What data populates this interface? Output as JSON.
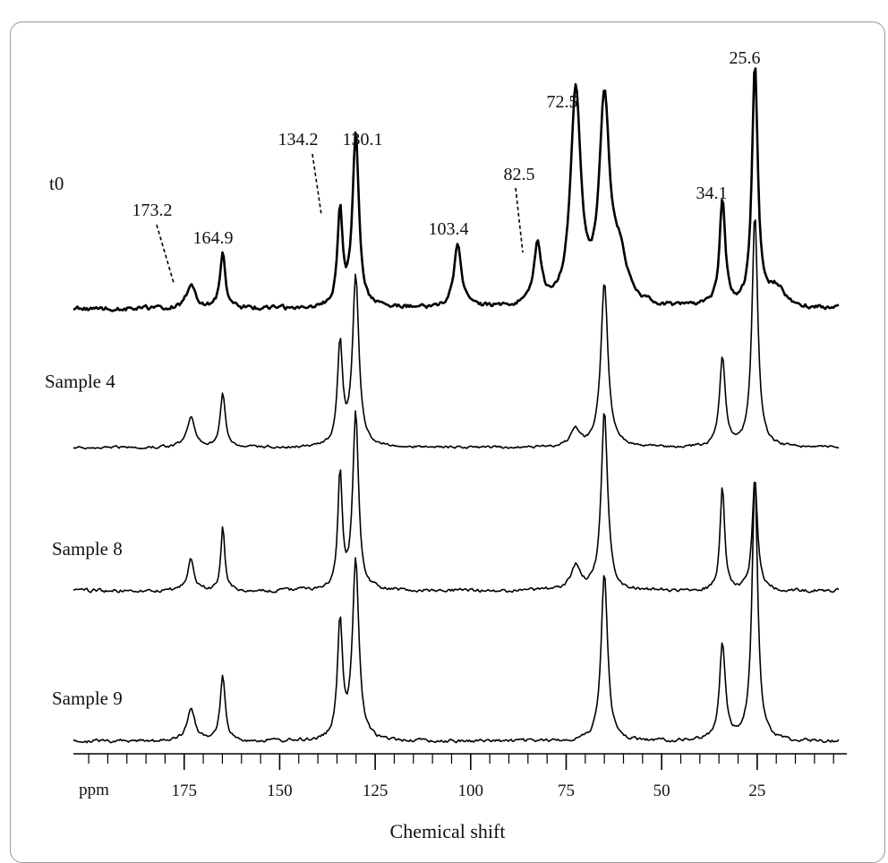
{
  "chart_data": {
    "type": "line",
    "title": "",
    "xlabel": "Chemical shift",
    "unit_label": "ppm",
    "xlim": [
      204,
      2
    ],
    "x_reversed": true,
    "x_ticks": [
      175,
      150,
      125,
      100,
      75,
      50,
      25
    ],
    "grid": false,
    "series": [
      {
        "name": "t0",
        "peaks": [
          {
            "ppm": 173.2,
            "h": 0.1,
            "w": 1.4
          },
          {
            "ppm": 164.9,
            "h": 0.24,
            "w": 0.8
          },
          {
            "ppm": 134.2,
            "h": 0.4,
            "w": 0.8
          },
          {
            "ppm": 130.1,
            "h": 0.72,
            "w": 1.0
          },
          {
            "ppm": 103.4,
            "h": 0.26,
            "w": 1.2
          },
          {
            "ppm": 82.5,
            "h": 0.25,
            "w": 1.2
          },
          {
            "ppm": 72.5,
            "h": 0.89,
            "w": 1.6
          },
          {
            "ppm": 65.0,
            "h": 0.82,
            "w": 1.6
          },
          {
            "ppm": 61.0,
            "h": 0.18,
            "w": 2.5
          },
          {
            "ppm": 34.1,
            "h": 0.44,
            "w": 0.9
          },
          {
            "ppm": 25.6,
            "h": 1.0,
            "w": 0.9
          },
          {
            "ppm": 20.0,
            "h": 0.08,
            "w": 2.5
          }
        ]
      },
      {
        "name": "Sample 4",
        "peaks": [
          {
            "ppm": 173.2,
            "h": 0.17,
            "w": 1.3
          },
          {
            "ppm": 164.9,
            "h": 0.3,
            "w": 0.8
          },
          {
            "ppm": 134.2,
            "h": 0.57,
            "w": 0.8
          },
          {
            "ppm": 130.1,
            "h": 0.95,
            "w": 1.0
          },
          {
            "ppm": 72.5,
            "h": 0.09,
            "w": 1.5
          },
          {
            "ppm": 65.0,
            "h": 0.92,
            "w": 1.1
          },
          {
            "ppm": 34.1,
            "h": 0.5,
            "w": 0.9
          },
          {
            "ppm": 25.6,
            "h": 1.3,
            "w": 0.9
          }
        ]
      },
      {
        "name": "Sample 8",
        "peaks": [
          {
            "ppm": 173.2,
            "h": 0.17,
            "w": 1.0
          },
          {
            "ppm": 164.9,
            "h": 0.35,
            "w": 0.6
          },
          {
            "ppm": 134.2,
            "h": 0.63,
            "w": 0.7
          },
          {
            "ppm": 130.1,
            "h": 0.97,
            "w": 0.9
          },
          {
            "ppm": 72.5,
            "h": 0.13,
            "w": 1.5
          },
          {
            "ppm": 65.0,
            "h": 0.98,
            "w": 1.0
          },
          {
            "ppm": 34.1,
            "h": 0.57,
            "w": 0.7
          },
          {
            "ppm": 25.6,
            "h": 0.62,
            "w": 0.8
          }
        ]
      },
      {
        "name": "Sample 9",
        "peaks": [
          {
            "ppm": 173.2,
            "h": 0.17,
            "w": 1.3
          },
          {
            "ppm": 164.9,
            "h": 0.36,
            "w": 0.8
          },
          {
            "ppm": 134.2,
            "h": 0.65,
            "w": 0.8
          },
          {
            "ppm": 130.1,
            "h": 1.0,
            "w": 1.0
          },
          {
            "ppm": 65.0,
            "h": 0.95,
            "w": 1.0
          },
          {
            "ppm": 34.1,
            "h": 0.55,
            "w": 0.9
          },
          {
            "ppm": 25.6,
            "h": 1.45,
            "w": 0.9
          }
        ]
      }
    ],
    "annotations": [
      {
        "text": "25.6",
        "ppm": 25.6
      },
      {
        "text": "72.5",
        "ppm": 72.5
      },
      {
        "text": "134.2",
        "ppm": 134.2
      },
      {
        "text": "130.1",
        "ppm": 130.1
      },
      {
        "text": "82.5",
        "ppm": 82.5
      },
      {
        "text": "34.1",
        "ppm": 34.1
      },
      {
        "text": "173.2",
        "ppm": 173.2
      },
      {
        "text": "164.9",
        "ppm": 164.9
      },
      {
        "text": "103.4",
        "ppm": 103.4
      }
    ]
  }
}
